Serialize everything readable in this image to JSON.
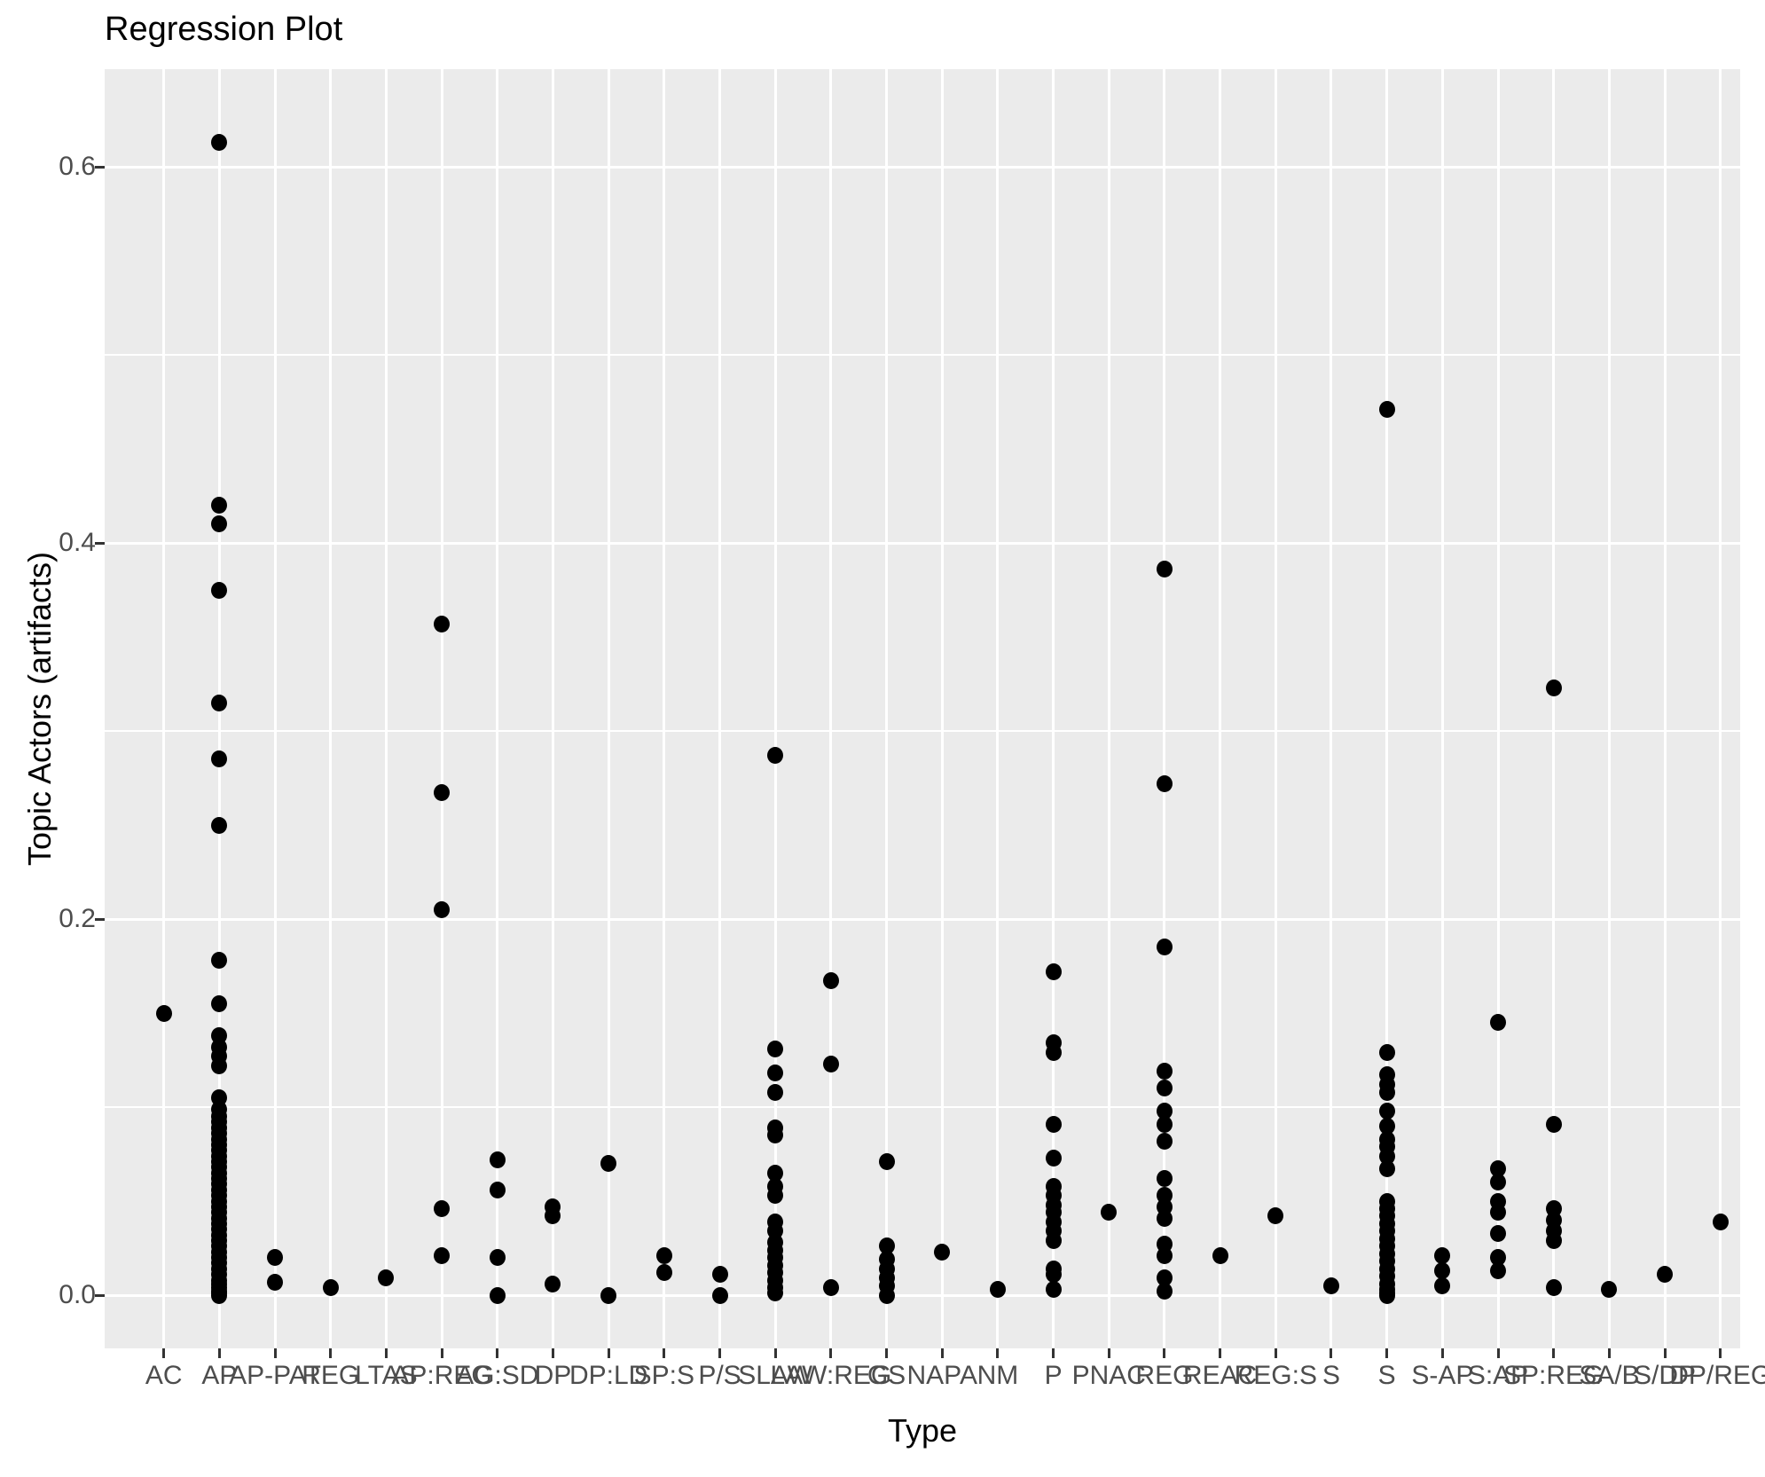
{
  "title": "Regression Plot",
  "x_axis": {
    "label": "Type"
  },
  "y_axis": {
    "label": "Topic Actors (artifacts)",
    "tick_labels": [
      "0.0",
      "0.2",
      "0.4",
      "0.6"
    ]
  },
  "colors": {
    "panel_background": "#EBEBEB",
    "gridline": "#FFFFFF",
    "point": "#000000",
    "axis_text": "#4D4D4D",
    "tick_mark": "#333333",
    "title_text": "#000000"
  },
  "chart_data": {
    "type": "scatter",
    "title": "Regression Plot",
    "xlabel": "Type",
    "ylabel": "Topic Actors (artifacts)",
    "ylim": [
      -0.028,
      0.652
    ],
    "y_major_ticks": [
      0.0,
      0.2,
      0.4,
      0.6
    ],
    "y_minor_ticks": [
      0.1,
      0.3,
      0.5
    ],
    "grid": "on",
    "legend": "none",
    "categories": [
      "AC",
      "AP",
      "AP-PAT",
      "REG",
      "LTAS",
      "AP:REG",
      "AG:SD",
      "DP",
      "DP:LD",
      "SP:S",
      "P/S",
      "SLAW",
      "LAW:REG",
      "GS",
      "NAPA",
      "NM",
      "P",
      "PNAC",
      "REG",
      "REAC",
      "REG:S",
      "S",
      "S",
      "S-AP",
      "S:AP",
      "SP:REG",
      "SA/B",
      "S/DP",
      "DP/REG"
    ],
    "series": [
      {
        "category": "AC",
        "values": [
          0.15
        ]
      },
      {
        "category": "AP",
        "values": [
          0.613,
          0.42,
          0.41,
          0.375,
          0.315,
          0.285,
          0.25,
          0.178,
          0.155,
          0.138,
          0.132,
          0.127,
          0.122,
          0.105,
          0.099,
          0.095,
          0.092,
          0.089,
          0.086,
          0.083,
          0.08,
          0.077,
          0.074,
          0.071,
          0.068,
          0.065,
          0.062,
          0.059,
          0.056,
          0.053,
          0.05,
          0.047,
          0.044,
          0.041,
          0.038,
          0.035,
          0.032,
          0.029,
          0.026,
          0.023,
          0.02,
          0.017,
          0.014,
          0.011,
          0.008,
          0.006,
          0.004,
          0.002,
          0.001,
          0.0
        ]
      },
      {
        "category": "AP-PAT",
        "values": [
          0.007,
          0.02
        ]
      },
      {
        "category": "REG",
        "values": [
          0.004
        ]
      },
      {
        "category": "LTAS",
        "values": [
          0.009
        ]
      },
      {
        "category": "AP:REG",
        "values": [
          0.021,
          0.046,
          0.205,
          0.267,
          0.357
        ]
      },
      {
        "category": "AG:SD",
        "values": [
          0.0,
          0.02,
          0.056,
          0.072
        ]
      },
      {
        "category": "DP",
        "values": [
          0.006,
          0.042,
          0.047
        ]
      },
      {
        "category": "DP:LD",
        "values": [
          0.0,
          0.07
        ]
      },
      {
        "category": "SP:S",
        "values": [
          0.012,
          0.021
        ]
      },
      {
        "category": "P/S",
        "values": [
          0.0,
          0.011
        ]
      },
      {
        "category": "SLAW",
        "values": [
          0.001,
          0.004,
          0.008,
          0.012,
          0.016,
          0.02,
          0.024,
          0.028,
          0.034,
          0.039,
          0.053,
          0.058,
          0.065,
          0.085,
          0.089,
          0.108,
          0.118,
          0.131,
          0.287
        ]
      },
      {
        "category": "LAW:REG",
        "values": [
          0.004,
          0.123,
          0.167
        ]
      },
      {
        "category": "GS",
        "values": [
          0.0,
          0.005,
          0.009,
          0.014,
          0.019,
          0.026,
          0.071
        ]
      },
      {
        "category": "NAPA",
        "values": [
          0.023
        ]
      },
      {
        "category": "NM",
        "values": [
          0.003
        ]
      },
      {
        "category": "P",
        "values": [
          0.003,
          0.011,
          0.014,
          0.029,
          0.034,
          0.039,
          0.044,
          0.048,
          0.053,
          0.058,
          0.073,
          0.091,
          0.129,
          0.134,
          0.172
        ]
      },
      {
        "category": "PNAC",
        "values": [
          0.044
        ]
      },
      {
        "category": "REG",
        "values": [
          0.002,
          0.009,
          0.021,
          0.027,
          0.041,
          0.047,
          0.053,
          0.062,
          0.082,
          0.091,
          0.098,
          0.11,
          0.119,
          0.185,
          0.272,
          0.386
        ]
      },
      {
        "category": "REAC",
        "values": [
          0.021
        ]
      },
      {
        "category": "REG:S",
        "values": [
          0.042
        ]
      },
      {
        "category": "S",
        "values": [
          0.005
        ]
      },
      {
        "category": "S",
        "values": [
          0.0,
          0.001,
          0.003,
          0.006,
          0.01,
          0.014,
          0.018,
          0.022,
          0.026,
          0.03,
          0.034,
          0.038,
          0.042,
          0.046,
          0.05,
          0.067,
          0.074,
          0.079,
          0.083,
          0.09,
          0.098,
          0.108,
          0.112,
          0.117,
          0.129,
          0.471
        ]
      },
      {
        "category": "S-AP",
        "values": [
          0.005,
          0.013,
          0.021
        ]
      },
      {
        "category": "S:AP",
        "values": [
          0.013,
          0.02,
          0.033,
          0.044,
          0.05,
          0.06,
          0.067,
          0.145
        ]
      },
      {
        "category": "SP:REG",
        "values": [
          0.004,
          0.029,
          0.034,
          0.04,
          0.046,
          0.091,
          0.323
        ]
      },
      {
        "category": "SA/B",
        "values": [
          0.003
        ]
      },
      {
        "category": "S/DP",
        "values": [
          0.011
        ]
      },
      {
        "category": "DP/REG",
        "values": [
          0.039
        ]
      }
    ]
  }
}
